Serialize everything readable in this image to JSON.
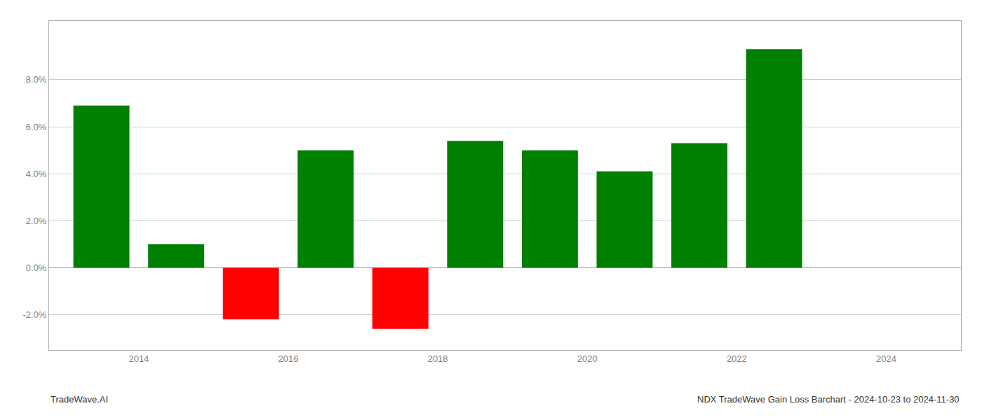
{
  "chart_data": {
    "type": "bar",
    "x": [
      2013.5,
      2014.5,
      2015.5,
      2016.5,
      2017.5,
      2018.5,
      2019.5,
      2020.5,
      2021.5,
      2022.5
    ],
    "values": [
      0.069,
      0.01,
      -0.022,
      0.05,
      -0.026,
      0.054,
      0.05,
      0.041,
      0.053,
      0.093
    ],
    "colors": [
      "#008000",
      "#008000",
      "#ff0000",
      "#008000",
      "#ff0000",
      "#008000",
      "#008000",
      "#008000",
      "#008000",
      "#008000"
    ],
    "xlim": [
      2012.8,
      2025.0
    ],
    "xticks": [
      2014,
      2016,
      2018,
      2020,
      2022,
      2024
    ],
    "ylim": [
      -0.035,
      0.105
    ],
    "yticks": [
      {
        "value": -0.02,
        "label": "-2.0%"
      },
      {
        "value": 0.0,
        "label": "0.0%"
      },
      {
        "value": 0.02,
        "label": "2.0%"
      },
      {
        "value": 0.04,
        "label": "4.0%"
      },
      {
        "value": 0.06,
        "label": "6.0%"
      },
      {
        "value": 0.08,
        "label": "8.0%"
      }
    ],
    "grid": true,
    "annotations": [
      "TradeWave.AI",
      "NDX TradeWave Gain Loss Barchart - 2024-10-23 to 2024-11-30"
    ]
  }
}
